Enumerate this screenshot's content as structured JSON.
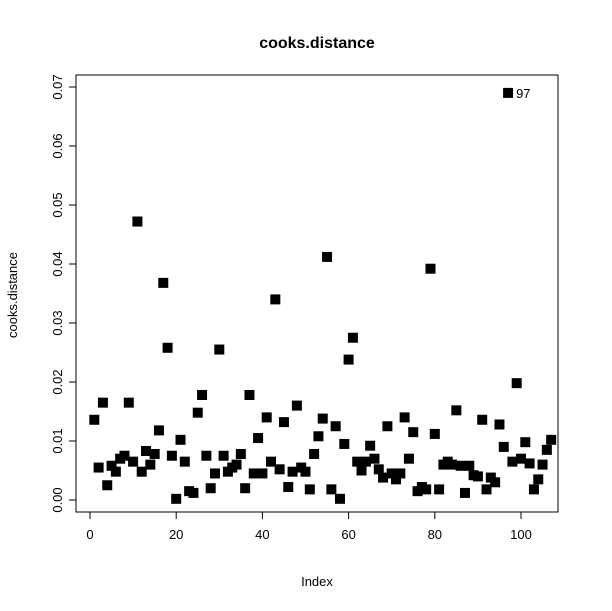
{
  "chart_data": {
    "type": "scatter",
    "title": "cooks.distance",
    "xlabel": "Index",
    "ylabel": "cooks.distance",
    "xlim": [
      0,
      108
    ],
    "ylim": [
      0,
      0.07
    ],
    "xticks": [
      0,
      20,
      40,
      60,
      80,
      100
    ],
    "xtick_labels": [
      "0",
      "20",
      "40",
      "60",
      "80",
      "100"
    ],
    "yticks": [
      0,
      0.01,
      0.02,
      0.03,
      0.04,
      0.05,
      0.06,
      0.07
    ],
    "ytick_labels": [
      "0.00",
      "0.01",
      "0.02",
      "0.03",
      "0.04",
      "0.05",
      "0.06",
      "0.07"
    ],
    "grid": false,
    "marker": "square",
    "marker_color": "#000000",
    "x": [
      1,
      2,
      3,
      4,
      5,
      6,
      7,
      8,
      9,
      10,
      11,
      12,
      13,
      14,
      15,
      16,
      17,
      18,
      19,
      20,
      21,
      22,
      23,
      24,
      25,
      26,
      27,
      28,
      29,
      30,
      31,
      32,
      33,
      34,
      35,
      36,
      37,
      38,
      39,
      40,
      41,
      42,
      43,
      44,
      45,
      46,
      47,
      48,
      49,
      50,
      51,
      52,
      53,
      54,
      55,
      56,
      57,
      58,
      59,
      60,
      61,
      62,
      63,
      64,
      65,
      66,
      67,
      68,
      69,
      70,
      71,
      72,
      73,
      74,
      75,
      76,
      77,
      78,
      79,
      80,
      81,
      82,
      83,
      84,
      85,
      86,
      87,
      88,
      89,
      90,
      91,
      92,
      93,
      94,
      95,
      96,
      97,
      98,
      99,
      100,
      101,
      102,
      103,
      104,
      105,
      106,
      107
    ],
    "y": [
      0.0136,
      0.0055,
      0.0165,
      0.0025,
      0.0058,
      0.0048,
      0.007,
      0.0075,
      0.0165,
      0.0065,
      0.0472,
      0.0048,
      0.0083,
      0.006,
      0.0078,
      0.0118,
      0.0368,
      0.0258,
      0.0075,
      0.0002,
      0.0102,
      0.0065,
      0.0015,
      0.0012,
      0.0148,
      0.0178,
      0.0075,
      0.002,
      0.0045,
      0.0255,
      0.0075,
      0.0048,
      0.0055,
      0.006,
      0.0078,
      0.002,
      0.0178,
      0.0045,
      0.0105,
      0.0045,
      0.014,
      0.0065,
      0.034,
      0.0052,
      0.0132,
      0.0022,
      0.0048,
      0.016,
      0.0055,
      0.0048,
      0.0018,
      0.0078,
      0.0108,
      0.0138,
      0.0412,
      0.0018,
      0.0125,
      0.0002,
      0.0095,
      0.0238,
      0.0275,
      0.0065,
      0.005,
      0.0065,
      0.0092,
      0.007,
      0.0052,
      0.0038,
      0.0125,
      0.0045,
      0.0035,
      0.0045,
      0.014,
      0.007,
      0.0115,
      0.0015,
      0.0022,
      0.0018,
      0.0392,
      0.0112,
      0.0018,
      0.006,
      0.0065,
      0.006,
      0.0152,
      0.0058,
      0.0012,
      0.0058,
      0.0042,
      0.004,
      0.0136,
      0.0018,
      0.0038,
      0.003,
      0.0128,
      0.009,
      0.069,
      0.0065,
      0.0198,
      0.007,
      0.0098,
      0.0062,
      0.0018,
      0.0035,
      0.006,
      0.0085,
      0.0102
    ],
    "annotations": [
      {
        "x": 97,
        "y": 0.069,
        "text": "97"
      }
    ]
  }
}
